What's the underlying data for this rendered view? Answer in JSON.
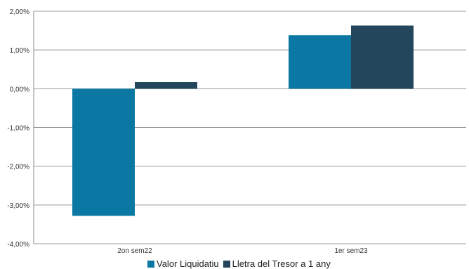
{
  "chart_data": {
    "type": "bar",
    "categories": [
      "2on sem22",
      "1er sem23"
    ],
    "series": [
      {
        "name": "Valor Liquidatiu",
        "values": [
          -3.28,
          1.38
        ],
        "color": "#0a78a3"
      },
      {
        "name": "Lletra del Tresor a 1 any",
        "values": [
          0.17,
          1.63
        ],
        "color": "#23465c"
      }
    ],
    "ylim": [
      -4,
      2
    ],
    "y_ticks": [
      2,
      1,
      0,
      -1,
      -2,
      -3,
      -4
    ],
    "y_tick_labels": [
      "2,00%",
      "1,00%",
      "0,00%",
      "-1,00%",
      "-2,00%",
      "-3,00%",
      "-4,00%"
    ],
    "grid": true,
    "legend_position": "bottom",
    "title": "",
    "xlabel": "",
    "ylabel": ""
  }
}
